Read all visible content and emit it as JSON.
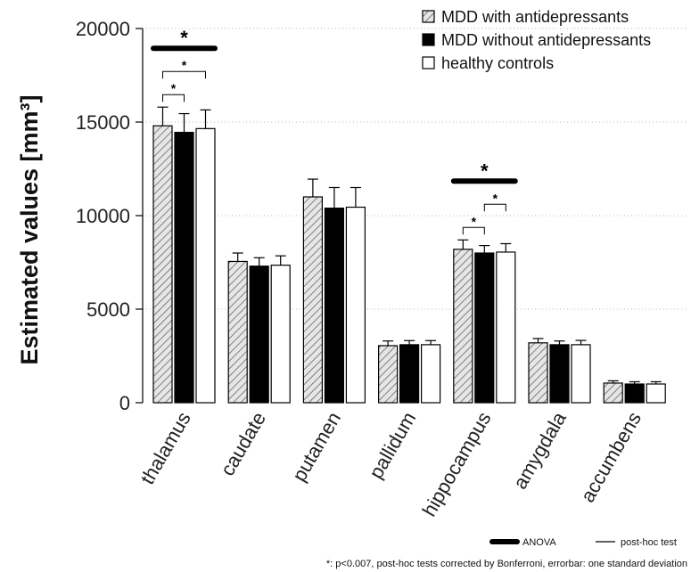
{
  "chart_data": {
    "type": "bar",
    "ylabel": "Estimated values [mm³]",
    "xlabel": "",
    "ylim": [
      0,
      20000
    ],
    "yticks": [
      "0",
      "5000",
      "10000",
      "15000",
      "20000"
    ],
    "categories": [
      "thalamus",
      "caudate",
      "putamen",
      "pallidum",
      "hippocampus",
      "amygdala",
      "accumbens"
    ],
    "grid": "horizontal dotted",
    "legend_position": "top-right",
    "series": [
      {
        "name": "MDD with antidepressants",
        "fill": "hatched",
        "values": [
          14800,
          7550,
          11000,
          3050,
          8200,
          3200,
          1050
        ],
        "errors": [
          1000,
          450,
          950,
          250,
          500,
          230,
          120
        ]
      },
      {
        "name": "MDD without antidepressants",
        "fill": "black",
        "values": [
          14450,
          7300,
          10400,
          3100,
          8000,
          3100,
          1000
        ],
        "errors": [
          1000,
          450,
          1100,
          220,
          400,
          200,
          120
        ]
      },
      {
        "name": "healthy controls",
        "fill": "white",
        "values": [
          14650,
          7350,
          10450,
          3100,
          8050,
          3100,
          1000
        ],
        "errors": [
          1000,
          500,
          1050,
          220,
          450,
          230,
          120
        ]
      }
    ],
    "annotations": {
      "anova": [
        {
          "category": "thalamus",
          "label": "*"
        },
        {
          "category": "hippocampus",
          "label": "*"
        }
      ],
      "posthoc": [
        {
          "category": "thalamus",
          "pair": [
            0,
            1
          ],
          "label": "*"
        },
        {
          "category": "thalamus",
          "pair": [
            0,
            2
          ],
          "label": "*"
        },
        {
          "category": "hippocampus",
          "pair": [
            0,
            1
          ],
          "label": "*"
        },
        {
          "category": "hippocampus",
          "pair": [
            1,
            2
          ],
          "label": "*"
        }
      ]
    },
    "key": {
      "anova_label": "ANOVA",
      "posthoc_label": "post-hoc test"
    },
    "footnote": "*: p<0.007, post-hoc tests corrected by Bonferroni, errorbar: one standard deviation"
  }
}
